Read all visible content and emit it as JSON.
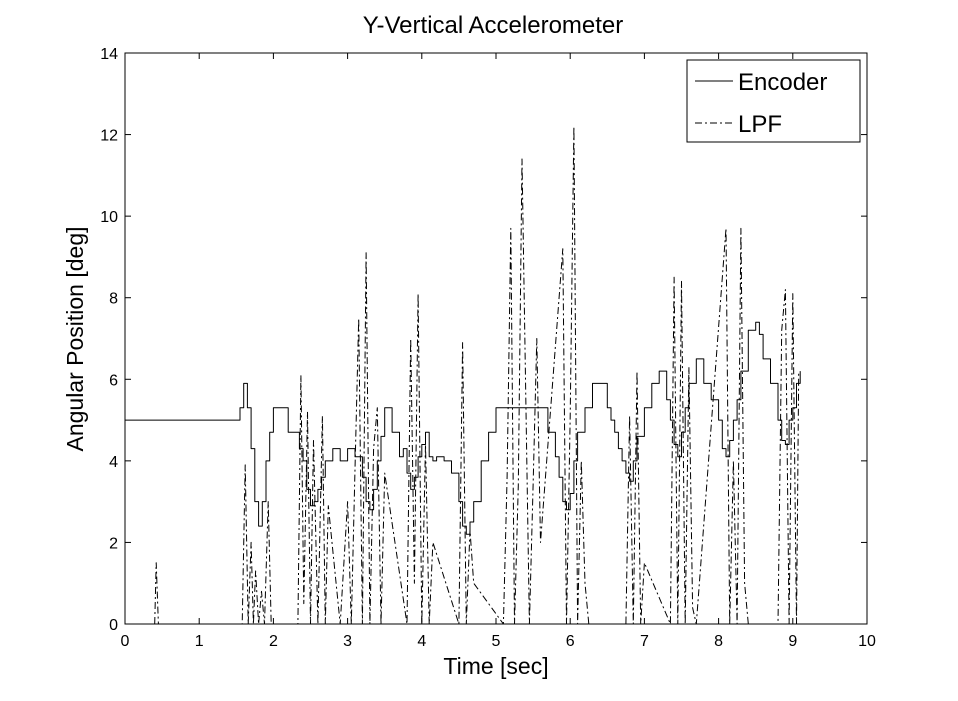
{
  "chart_data": {
    "type": "line",
    "title": "Y-Vertical Accelerometer",
    "xlabel": "Time [sec]",
    "ylabel": "Angular Position [deg]",
    "xlim": [
      0,
      10
    ],
    "ylim": [
      0,
      14
    ],
    "xticks": [
      "0",
      "1",
      "2",
      "3",
      "4",
      "5",
      "6",
      "7",
      "8",
      "9",
      "10"
    ],
    "yticks": [
      "0",
      "2",
      "4",
      "6",
      "8",
      "10",
      "12",
      "14"
    ],
    "grid": false,
    "legend": "top-right",
    "series": [
      {
        "name": "Encoder",
        "color": "#000000",
        "dash": "solid",
        "x": [
          0,
          1.5,
          1.55,
          1.6,
          1.65,
          1.7,
          1.75,
          1.8,
          1.85,
          1.9,
          1.95,
          2.0,
          2.05,
          2.1,
          2.2,
          2.3,
          2.35,
          2.4,
          2.45,
          2.5,
          2.55,
          2.6,
          2.65,
          2.7,
          2.75,
          2.8,
          2.9,
          3.0,
          3.1,
          3.2,
          3.25,
          3.3,
          3.35,
          3.4,
          3.45,
          3.5,
          3.6,
          3.7,
          3.75,
          3.8,
          3.85,
          3.9,
          3.95,
          4.0,
          4.05,
          4.1,
          4.15,
          4.2,
          4.3,
          4.4,
          4.5,
          4.55,
          4.6,
          4.65,
          4.7,
          4.8,
          4.9,
          5.0,
          5.1,
          5.2,
          5.3,
          5.4,
          5.5,
          5.6,
          5.7,
          5.8,
          5.85,
          5.9,
          5.95,
          6.0,
          6.05,
          6.1,
          6.2,
          6.3,
          6.4,
          6.5,
          6.55,
          6.6,
          6.65,
          6.7,
          6.75,
          6.8,
          6.85,
          6.9,
          7.0,
          7.1,
          7.2,
          7.3,
          7.35,
          7.4,
          7.45,
          7.5,
          7.55,
          7.6,
          7.7,
          7.8,
          7.9,
          8.0,
          8.05,
          8.1,
          8.15,
          8.2,
          8.25,
          8.3,
          8.4,
          8.5,
          8.55,
          8.6,
          8.7,
          8.8,
          8.85,
          8.9,
          8.95,
          9.0,
          9.05,
          9.1
        ],
        "y": [
          5.0,
          5.0,
          5.3,
          5.9,
          5.3,
          4.3,
          3.0,
          2.4,
          3.0,
          4.0,
          4.7,
          5.3,
          5.3,
          5.3,
          4.7,
          4.7,
          4.3,
          4.0,
          3.3,
          2.9,
          3.0,
          3.3,
          3.6,
          4.0,
          4.0,
          4.3,
          4.0,
          4.3,
          4.1,
          3.6,
          3.0,
          2.8,
          3.3,
          4.0,
          4.6,
          5.3,
          4.7,
          4.1,
          4.3,
          3.7,
          3.3,
          3.6,
          4.1,
          4.4,
          4.7,
          4.1,
          4.0,
          4.1,
          4.0,
          3.7,
          3.0,
          2.4,
          2.2,
          2.5,
          3.0,
          4.0,
          4.7,
          5.3,
          5.3,
          5.3,
          5.3,
          5.3,
          5.3,
          5.3,
          4.7,
          4.1,
          3.6,
          3.0,
          2.8,
          3.2,
          4.0,
          4.7,
          5.3,
          5.9,
          5.9,
          5.3,
          5.0,
          4.7,
          4.3,
          4.0,
          3.7,
          3.5,
          4.0,
          4.6,
          5.3,
          5.9,
          6.2,
          5.5,
          5.0,
          4.4,
          4.1,
          4.7,
          5.3,
          5.9,
          6.5,
          5.9,
          5.5,
          5.0,
          4.3,
          4.1,
          4.5,
          5.0,
          5.5,
          6.2,
          7.2,
          7.4,
          7.1,
          6.5,
          5.9,
          5.0,
          4.5,
          4.4,
          5.0,
          5.3,
          5.9,
          6.2
        ]
      },
      {
        "name": "LPF",
        "color": "#000000",
        "dash": "dash-dot",
        "x": [
          0.4,
          0.42,
          0.45,
          1.58,
          1.62,
          1.66,
          1.7,
          1.73,
          1.76,
          1.8,
          1.84,
          1.88,
          1.93,
          1.97,
          2.33,
          2.37,
          2.41,
          2.46,
          2.5,
          2.54,
          2.6,
          2.66,
          2.7,
          2.74,
          2.9,
          2.95,
          3.0,
          3.05,
          3.1,
          3.15,
          3.2,
          3.25,
          3.3,
          3.35,
          3.4,
          3.45,
          3.5,
          3.8,
          3.85,
          3.9,
          3.95,
          4.0,
          4.05,
          4.1,
          4.15,
          4.5,
          4.55,
          4.6,
          4.65,
          4.7,
          5.1,
          5.15,
          5.2,
          5.25,
          5.3,
          5.35,
          5.45,
          5.5,
          5.55,
          5.6,
          5.9,
          5.95,
          6.0,
          6.05,
          6.1,
          6.15,
          6.2,
          6.25,
          6.75,
          6.8,
          6.85,
          6.9,
          6.95,
          7.0,
          7.35,
          7.4,
          7.45,
          7.5,
          7.55,
          7.6,
          7.65,
          7.7,
          8.1,
          8.15,
          8.2,
          8.25,
          8.3,
          8.35,
          8.4,
          8.8,
          8.85,
          8.9,
          8.95,
          9.0,
          9.05,
          9.08
        ],
        "y": [
          0,
          1.5,
          0,
          0,
          3.9,
          0,
          2.0,
          0,
          1.3,
          0,
          0.8,
          0,
          3.0,
          0,
          0,
          6.1,
          0.5,
          5.2,
          0,
          4.5,
          0,
          5.1,
          0,
          2.9,
          0,
          1.5,
          3.0,
          0,
          3.8,
          7.5,
          0,
          9.1,
          0,
          4.3,
          5.3,
          0,
          3.7,
          0,
          7.0,
          1.0,
          8.1,
          0,
          4.4,
          0,
          2.0,
          0,
          6.9,
          0,
          2.3,
          1.0,
          0,
          3.6,
          9.7,
          0,
          3.4,
          11.4,
          0,
          3.4,
          7.0,
          2.0,
          9.2,
          0,
          5.1,
          12.2,
          0,
          4.0,
          1.0,
          0,
          0,
          5.1,
          0,
          6.2,
          0,
          1.5,
          0,
          8.5,
          0,
          8.4,
          0,
          6.3,
          0.4,
          0,
          9.7,
          0,
          4.0,
          0,
          9.7,
          1.0,
          0,
          0,
          7.2,
          8.2,
          0,
          8.1,
          0,
          6.2
        ]
      }
    ]
  }
}
